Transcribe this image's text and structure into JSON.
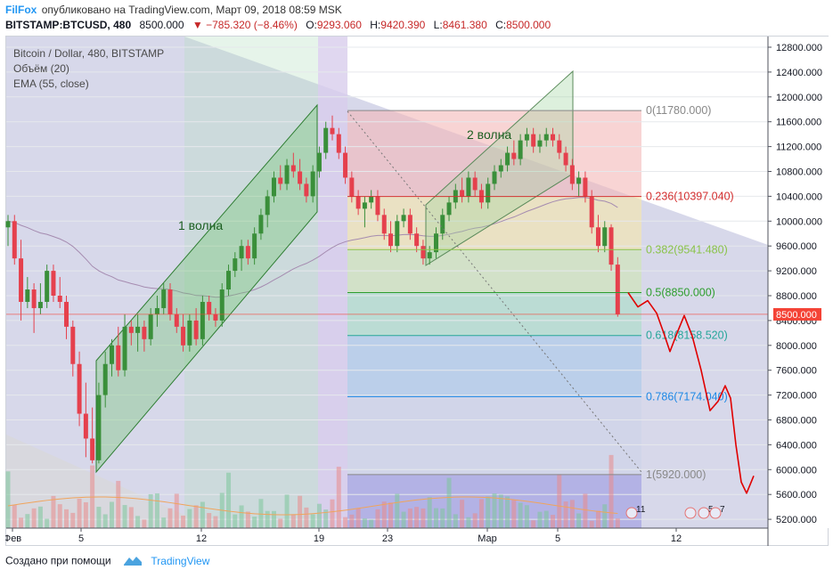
{
  "header": {
    "author": "FilFox",
    "published": "опубликовано на TradingView.com, Март 09, 2018 08:59 MSK",
    "symbol": "BITSTAMP:BTCUSD, 480",
    "last": "8500.000",
    "change": "▼ −785.320 (−8.46%)",
    "o_label": "O:",
    "o_value": "9293.060",
    "h_label": "H:",
    "h_value": "9420.390",
    "l_label": "L:",
    "l_value": "8461.380",
    "c_label": "C:",
    "c_value": "8500.000"
  },
  "legend": {
    "title": "Bitcoin / Dollar, 480, BITSTAMP",
    "volume": "Объём (20)",
    "ema": "EMA (55, close)"
  },
  "footer": {
    "made_with": "Создано при помощи",
    "brand": "TradingView"
  },
  "colors": {
    "up": "#26a69a",
    "down": "#ef5350",
    "up_body": "#3a8f3a",
    "down_body": "#e5404d",
    "last_price": "#f44336",
    "forecast": "#e00000"
  },
  "chart_data": {
    "type": "candlestick",
    "symbol": "BITSTAMP:BTCUSD",
    "interval": "480",
    "x_ticks": [
      "Фев",
      "5",
      "12",
      "19",
      "23",
      "Мар",
      "5",
      "12"
    ],
    "y_ticks": [
      "12800.000",
      "12400.000",
      "12000.000",
      "11600.000",
      "11200.000",
      "10800.000",
      "10400.000",
      "10000.000",
      "9600.000",
      "9200.000",
      "8800.000",
      "8400.000",
      "8000.000",
      "7600.000",
      "7200.000",
      "6800.000",
      "6400.000",
      "6000.000",
      "5600.000",
      "5200.000"
    ],
    "ylim": [
      5000,
      13000
    ],
    "last_price_label": "8500.000",
    "last_price": 8500,
    "annotations": [
      "1 волна",
      "2 волна"
    ],
    "fibonacci": [
      {
        "level": "0",
        "price": 11780,
        "label": "0(11780.000)",
        "color": "#888888"
      },
      {
        "level": "0.236",
        "price": 10397.04,
        "label": "0.236(10397.040)",
        "color": "#d32f2f"
      },
      {
        "level": "0.382",
        "price": 9541.48,
        "label": "0.382(9541.480)",
        "color": "#8bc34a"
      },
      {
        "level": "0.5",
        "price": 8850,
        "label": "0.5(8850.000)",
        "color": "#2e9e2e"
      },
      {
        "level": "0.618",
        "price": 8158.52,
        "label": "0.618(8158.520)",
        "color": "#26a69a"
      },
      {
        "level": "0.786",
        "price": 7174.04,
        "label": "0.786(7174.040)",
        "color": "#1e88e5"
      },
      {
        "level": "1",
        "price": 5920,
        "label": "1(5920.000)",
        "color": "#888888"
      }
    ],
    "event_badges": [
      "11",
      "5",
      "7"
    ],
    "candles": [
      [
        9900,
        10100,
        9600,
        10000
      ],
      [
        10000,
        10100,
        9300,
        9400
      ],
      [
        9400,
        9700,
        8400,
        8700
      ],
      [
        8700,
        9100,
        8600,
        8900
      ],
      [
        8900,
        9000,
        8200,
        8600
      ],
      [
        8600,
        9000,
        8500,
        8700
      ],
      [
        8700,
        9300,
        8600,
        9200
      ],
      [
        9200,
        9300,
        8700,
        8800
      ],
      [
        8800,
        9100,
        8600,
        8700
      ],
      [
        8700,
        8800,
        8100,
        8300
      ],
      [
        8300,
        8400,
        7500,
        7700
      ],
      [
        7700,
        7900,
        6700,
        6900
      ],
      [
        6900,
        7400,
        6200,
        6500
      ],
      [
        6500,
        7000,
        6100,
        6150
      ],
      [
        6150,
        7400,
        6100,
        7200
      ],
      [
        7200,
        7900,
        7000,
        7700
      ],
      [
        7700,
        8100,
        7500,
        8000
      ],
      [
        8000,
        8300,
        7500,
        7600
      ],
      [
        7600,
        8500,
        7500,
        8300
      ],
      [
        8300,
        8400,
        8000,
        8200
      ],
      [
        8200,
        8500,
        7900,
        8300
      ],
      [
        8300,
        8400,
        7900,
        8100
      ],
      [
        8100,
        8600,
        8000,
        8500
      ],
      [
        8500,
        8800,
        8300,
        8600
      ],
      [
        8600,
        9000,
        8500,
        8900
      ],
      [
        8900,
        9000,
        8400,
        8500
      ],
      [
        8500,
        8600,
        8200,
        8300
      ],
      [
        8300,
        8500,
        7900,
        8000
      ],
      [
        8000,
        8500,
        7900,
        8400
      ],
      [
        8400,
        8600,
        8000,
        8100
      ],
      [
        8100,
        8800,
        8000,
        8700
      ],
      [
        8700,
        8800,
        8400,
        8500
      ],
      [
        8500,
        8600,
        8300,
        8400
      ],
      [
        8400,
        9000,
        8300,
        8900
      ],
      [
        8900,
        9300,
        8800,
        9200
      ],
      [
        9200,
        9500,
        9100,
        9400
      ],
      [
        9400,
        9700,
        9200,
        9600
      ],
      [
        9600,
        9700,
        9300,
        9400
      ],
      [
        9400,
        9900,
        9300,
        9800
      ],
      [
        9800,
        10200,
        9700,
        10100
      ],
      [
        10100,
        10500,
        9900,
        10400
      ],
      [
        10400,
        10800,
        10300,
        10700
      ],
      [
        10700,
        10900,
        10500,
        10600
      ],
      [
        10600,
        11000,
        10500,
        10900
      ],
      [
        10900,
        11100,
        10700,
        10800
      ],
      [
        10800,
        11000,
        10500,
        10600
      ],
      [
        10600,
        10700,
        10300,
        10400
      ],
      [
        10400,
        10900,
        10300,
        10800
      ],
      [
        10800,
        11200,
        10700,
        11100
      ],
      [
        11100,
        11600,
        11000,
        11500
      ],
      [
        11500,
        11700,
        11300,
        11400
      ],
      [
        11400,
        11500,
        11000,
        11100
      ],
      [
        11100,
        11200,
        10600,
        10700
      ],
      [
        10700,
        10800,
        10300,
        10400
      ],
      [
        10400,
        10500,
        10100,
        10200
      ],
      [
        10200,
        10400,
        9900,
        10300
      ],
      [
        10300,
        10500,
        10200,
        10400
      ],
      [
        10400,
        10500,
        10000,
        10100
      ],
      [
        10100,
        10200,
        9700,
        9800
      ],
      [
        9800,
        10000,
        9500,
        9600
      ],
      [
        9600,
        10100,
        9500,
        10000
      ],
      [
        10000,
        10200,
        9900,
        10100
      ],
      [
        10100,
        10200,
        9700,
        9800
      ],
      [
        9800,
        9900,
        9500,
        9600
      ],
      [
        9600,
        9700,
        9300,
        9400
      ],
      [
        9400,
        9600,
        9300,
        9500
      ],
      [
        9500,
        9900,
        9400,
        9800
      ],
      [
        9800,
        10200,
        9700,
        10100
      ],
      [
        10100,
        10400,
        10000,
        10300
      ],
      [
        10300,
        10600,
        10200,
        10500
      ],
      [
        10500,
        10700,
        10300,
        10400
      ],
      [
        10400,
        10800,
        10300,
        10700
      ],
      [
        10700,
        10800,
        10400,
        10500
      ],
      [
        10500,
        10600,
        10200,
        10300
      ],
      [
        10300,
        10700,
        10200,
        10600
      ],
      [
        10600,
        10900,
        10500,
        10800
      ],
      [
        10800,
        11000,
        10700,
        10900
      ],
      [
        10900,
        11200,
        10800,
        11100
      ],
      [
        11100,
        11300,
        10900,
        11000
      ],
      [
        11000,
        11400,
        10900,
        11300
      ],
      [
        11300,
        11500,
        11200,
        11400
      ],
      [
        11400,
        11500,
        11100,
        11200
      ],
      [
        11200,
        11400,
        11100,
        11300
      ],
      [
        11300,
        11500,
        11200,
        11400
      ],
      [
        11400,
        11500,
        11200,
        11300
      ],
      [
        11300,
        11400,
        11000,
        11100
      ],
      [
        11100,
        11200,
        10800,
        10900
      ],
      [
        10900,
        11000,
        10500,
        10600
      ],
      [
        10600,
        10800,
        10400,
        10700
      ],
      [
        10700,
        10800,
        10300,
        10400
      ],
      [
        10400,
        10500,
        9800,
        9900
      ],
      [
        9900,
        10100,
        9500,
        9600
      ],
      [
        9600,
        10000,
        9500,
        9900
      ],
      [
        9900,
        9950,
        9200,
        9300
      ],
      [
        9300,
        9420,
        8461,
        8500
      ]
    ],
    "forecast_path_prices": [
      8850,
      8620,
      8720,
      8520,
      8200,
      7900,
      8200,
      8480,
      8150,
      7600,
      6950,
      7100,
      7350,
      7150,
      6400,
      5800,
      5620,
      5900
    ],
    "volume_max": 1
  }
}
